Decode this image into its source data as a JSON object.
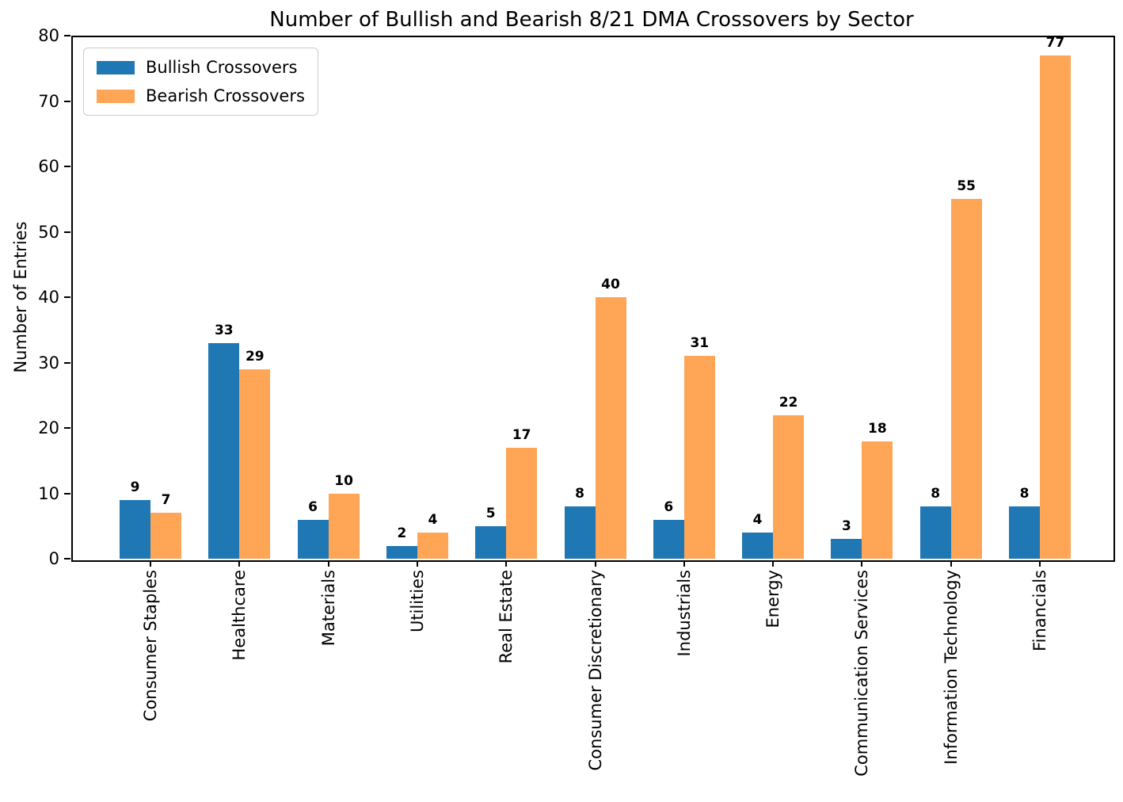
{
  "chart_data": {
    "type": "bar",
    "title": "Number of Bullish and Bearish 8/21 DMA Crossovers by Sector",
    "xlabel": "",
    "ylabel": "Number of Entries",
    "ylim": [
      0,
      80
    ],
    "yticks": [
      0,
      10,
      20,
      30,
      40,
      50,
      60,
      70,
      80
    ],
    "grid": false,
    "legend_position": "upper left",
    "bar_value_labels": true,
    "x_tick_rotation_deg": 90,
    "categories": [
      "Consumer Staples",
      "Healthcare",
      "Materials",
      "Utilities",
      "Real Estate",
      "Consumer Discretionary",
      "Industrials",
      "Energy",
      "Communication Services",
      "Information Technology",
      "Financials"
    ],
    "series": [
      {
        "name": "Bullish Crossovers",
        "color": "#1f77b4",
        "values": [
          9,
          33,
          6,
          2,
          5,
          8,
          6,
          4,
          3,
          8,
          8
        ]
      },
      {
        "name": "Bearish Crossovers",
        "color": "#ffa556",
        "values": [
          7,
          29,
          10,
          4,
          17,
          40,
          31,
          22,
          18,
          55,
          77
        ]
      }
    ]
  }
}
